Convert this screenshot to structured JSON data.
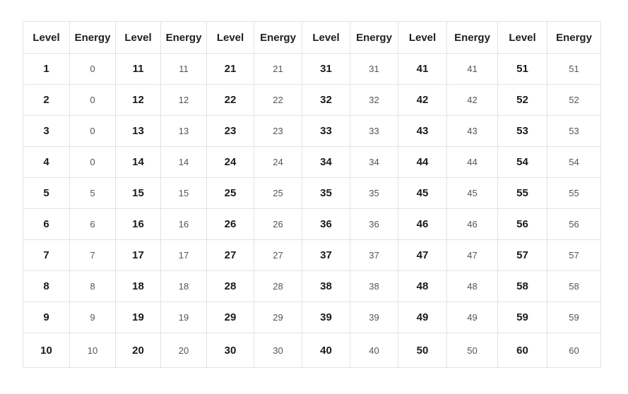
{
  "table": {
    "headers": [
      "Level",
      "Energy",
      "Level",
      "Energy",
      "Level",
      "Energy",
      "Level",
      "Energy",
      "Level",
      "Energy",
      "Level",
      "Energy"
    ],
    "rows": [
      [
        "1",
        "0",
        "11",
        "11",
        "21",
        "21",
        "31",
        "31",
        "41",
        "41",
        "51",
        "51"
      ],
      [
        "2",
        "0",
        "12",
        "12",
        "22",
        "22",
        "32",
        "32",
        "42",
        "42",
        "52",
        "52"
      ],
      [
        "3",
        "0",
        "13",
        "13",
        "23",
        "23",
        "33",
        "33",
        "43",
        "43",
        "53",
        "53"
      ],
      [
        "4",
        "0",
        "14",
        "14",
        "24",
        "24",
        "34",
        "34",
        "44",
        "44",
        "54",
        "54"
      ],
      [
        "5",
        "5",
        "15",
        "15",
        "25",
        "25",
        "35",
        "35",
        "45",
        "45",
        "55",
        "55"
      ],
      [
        "6",
        "6",
        "16",
        "16",
        "26",
        "26",
        "36",
        "36",
        "46",
        "46",
        "56",
        "56"
      ],
      [
        "7",
        "7",
        "17",
        "17",
        "27",
        "27",
        "37",
        "37",
        "47",
        "47",
        "57",
        "57"
      ],
      [
        "8",
        "8",
        "18",
        "18",
        "28",
        "28",
        "38",
        "38",
        "48",
        "48",
        "58",
        "58"
      ],
      [
        "9",
        "9",
        "19",
        "19",
        "29",
        "29",
        "39",
        "39",
        "49",
        "49",
        "59",
        "59"
      ],
      [
        "10",
        "10",
        "20",
        "20",
        "30",
        "30",
        "40",
        "40",
        "50",
        "50",
        "60",
        "60"
      ]
    ]
  }
}
